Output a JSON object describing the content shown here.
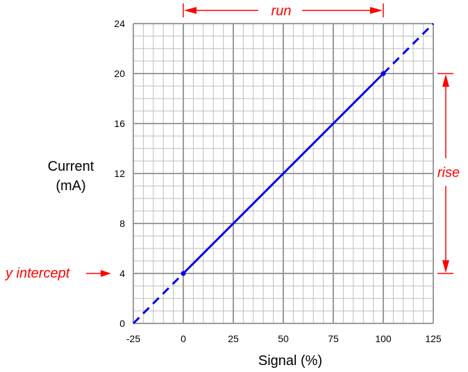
{
  "chart_data": {
    "type": "line",
    "title": "",
    "xlabel": "Signal (%)",
    "ylabel_lines": [
      "Current",
      "(mA)"
    ],
    "xlim": [
      -25,
      125
    ],
    "ylim": [
      0,
      24
    ],
    "x_ticks": [
      "-25",
      "0",
      "25",
      "50",
      "75",
      "100",
      "125"
    ],
    "y_ticks": [
      "0",
      "4",
      "8",
      "12",
      "16",
      "20",
      "24"
    ],
    "grid": true,
    "series": [
      {
        "x": [
          0,
          100
        ],
        "y": [
          4,
          20
        ],
        "extrapolated_x": [
          -25,
          125
        ],
        "extrapolated_y": [
          0,
          24
        ],
        "color": "#0000ee"
      }
    ],
    "annotations": {
      "run": "run",
      "rise": "rise",
      "y_intercept": "y intercept"
    },
    "annotation_color": "#ff0000"
  }
}
